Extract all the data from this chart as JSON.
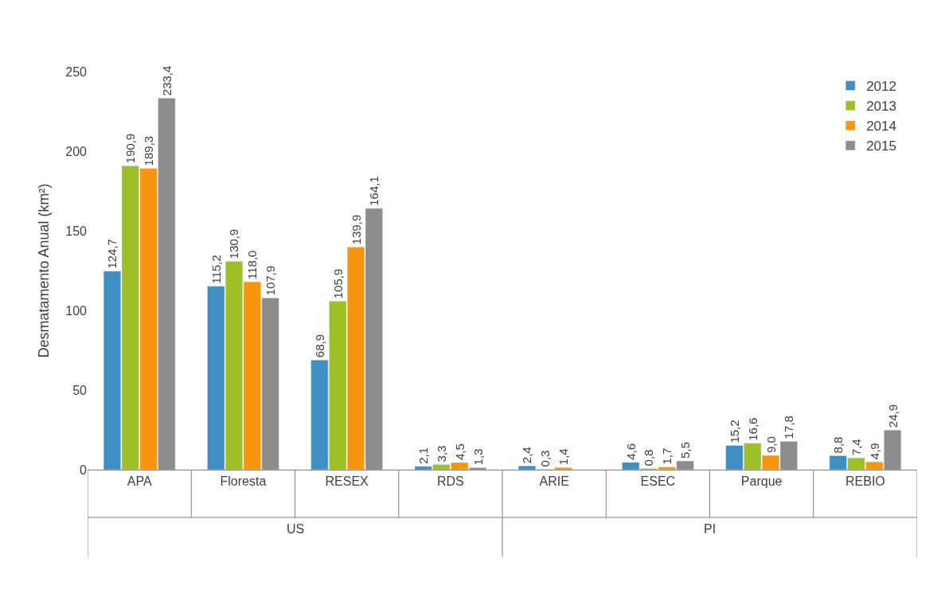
{
  "chart_data": {
    "type": "bar",
    "ylabel": "Desmatamento Anual (km²)",
    "categories": [
      "APA",
      "Floresta",
      "RESEX",
      "RDS",
      "ARIE",
      "ESEC",
      "Parque",
      "REBIO"
    ],
    "series": [
      {
        "name": "2012",
        "color": "#3f8fc2",
        "values": [
          124.7,
          115.2,
          68.9,
          2.1,
          2.4,
          4.6,
          15.2,
          8.8
        ],
        "value_labels": [
          "124,7",
          "115,2",
          "68,9",
          "2,1",
          "2,4",
          "4,6",
          "15,2",
          "8,8"
        ]
      },
      {
        "name": "2013",
        "color": "#9fbf26",
        "values": [
          190.9,
          130.9,
          105.9,
          3.3,
          0.3,
          0.8,
          16.6,
          7.4
        ],
        "value_labels": [
          "190,9",
          "130,9",
          "105,9",
          "3,3",
          "0,3",
          "0,8",
          "16,6",
          "7,4"
        ]
      },
      {
        "name": "2014",
        "color": "#f7960e",
        "values": [
          189.3,
          118.0,
          139.9,
          4.5,
          1.4,
          1.7,
          9.0,
          4.9
        ],
        "value_labels": [
          "189,3",
          "118,0",
          "139,9",
          "4,5",
          "1,4",
          "1,7",
          "9,0",
          "4,9"
        ]
      },
      {
        "name": "2015",
        "color": "#8c8c8c",
        "values": [
          233.4,
          107.9,
          164.1,
          1.3,
          null,
          5.5,
          17.8,
          24.9
        ],
        "value_labels": [
          "233,4",
          "107,9",
          "164,1",
          "1,3",
          null,
          "5,5",
          "17,8",
          "24,9"
        ]
      }
    ],
    "ylim": [
      0,
      250
    ],
    "yticks": [
      0,
      50,
      100,
      150,
      200,
      250
    ],
    "legend": "top right",
    "annotations": [
      "US",
      "PI"
    ]
  }
}
